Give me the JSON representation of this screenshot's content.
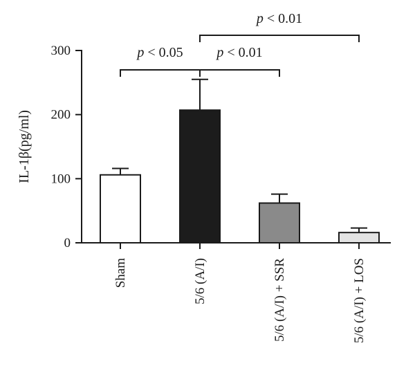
{
  "chart_data": {
    "type": "bar",
    "title": "",
    "xlabel": "",
    "ylabel": "IL-1β(pg/ml)",
    "ylim": [
      0,
      300
    ],
    "yticks": [
      0,
      100,
      200,
      300
    ],
    "categories": [
      "Sham",
      "5/6 (A/I)",
      "5/6 (A/I) + SSR",
      "5/6 (A/I) + LOS"
    ],
    "values": [
      106,
      207,
      62,
      16
    ],
    "errors": [
      10,
      48,
      14,
      7
    ],
    "bar_colors": [
      "#ffffff",
      "#1c1c1c",
      "#8a8a8a",
      "#e3e3e3"
    ],
    "significance": [
      {
        "from": 0,
        "to": 1,
        "p_symbol": "p",
        "text": " < 0.05"
      },
      {
        "from": 1,
        "to": 2,
        "p_symbol": "p",
        "text": " < 0.01"
      },
      {
        "from": 1,
        "to": 3,
        "p_symbol": "p",
        "text": " < 0.01"
      }
    ]
  }
}
